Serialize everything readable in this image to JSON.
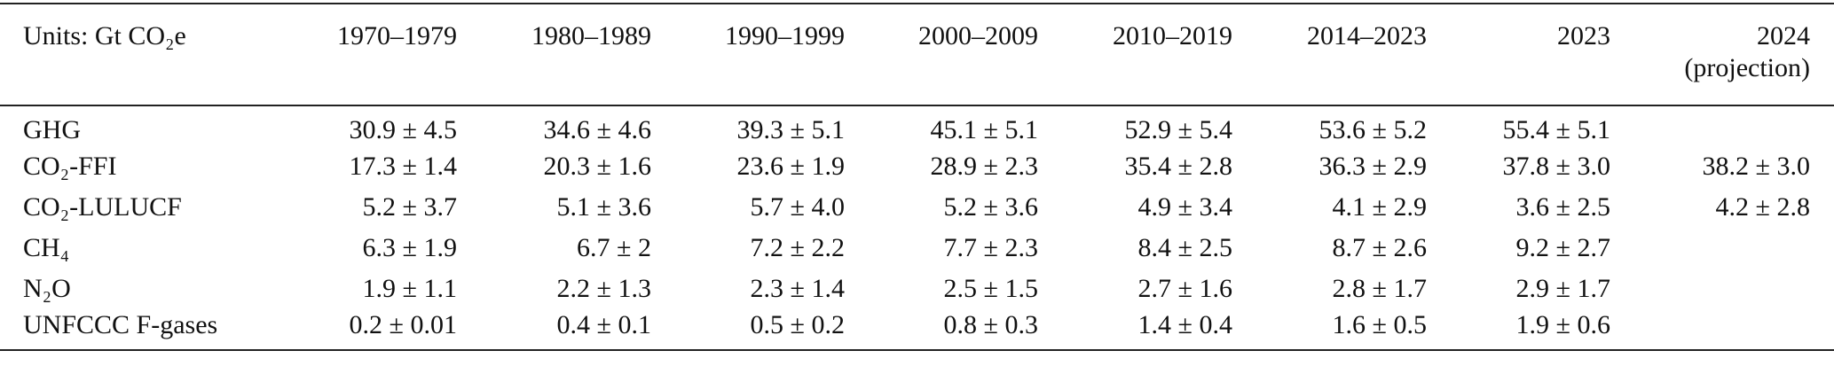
{
  "table": {
    "header": [
      "Units: Gt CO₂e",
      "1970–1979",
      "1980–1989",
      "1990–1999",
      "2000–2009",
      "2010–2019",
      "2014–2023",
      "2023",
      "2024\n(projection)"
    ],
    "rows": [
      [
        "GHG",
        "30.9 ± 4.5",
        "34.6 ± 4.6",
        "39.3 ± 5.1",
        "45.1 ± 5.1",
        "52.9 ± 5.4",
        "53.6 ± 5.2",
        "55.4 ± 5.1",
        null
      ],
      [
        "CO₂-FFI",
        "17.3 ± 1.4",
        "20.3 ± 1.6",
        "23.6 ± 1.9",
        "28.9 ± 2.3",
        "35.4 ± 2.8",
        "36.3 ± 2.9",
        "37.8 ± 3.0",
        "38.2 ± 3.0"
      ],
      [
        "CO₂-LULUCF",
        "5.2 ± 3.7",
        "5.1 ± 3.6",
        "5.7 ± 4.0",
        "5.2 ± 3.6",
        "4.9 ± 3.4",
        "4.1 ± 2.9",
        "3.6 ± 2.5",
        "4.2 ± 2.8"
      ],
      [
        "CH₄",
        "6.3 ± 1.9",
        "6.7 ± 2",
        "7.2 ± 2.2",
        "7.7 ± 2.3",
        "8.4 ± 2.5",
        "8.7 ± 2.6",
        "9.2 ± 2.7",
        null
      ],
      [
        "N₂O",
        "1.9 ± 1.1",
        "2.2 ± 1.3",
        "2.3 ± 1.4",
        "2.5 ± 1.5",
        "2.7 ± 1.6",
        "2.8 ± 1.7",
        "2.9 ± 1.7",
        null
      ],
      [
        "UNFCCC F-gases",
        "0.2 ± 0.01",
        "0.4 ± 0.1",
        "0.5 ± 0.2",
        "0.8 ± 0.3",
        "1.4 ± 0.4",
        "1.6 ± 0.5",
        "1.9 ± 0.6",
        null
      ]
    ]
  }
}
